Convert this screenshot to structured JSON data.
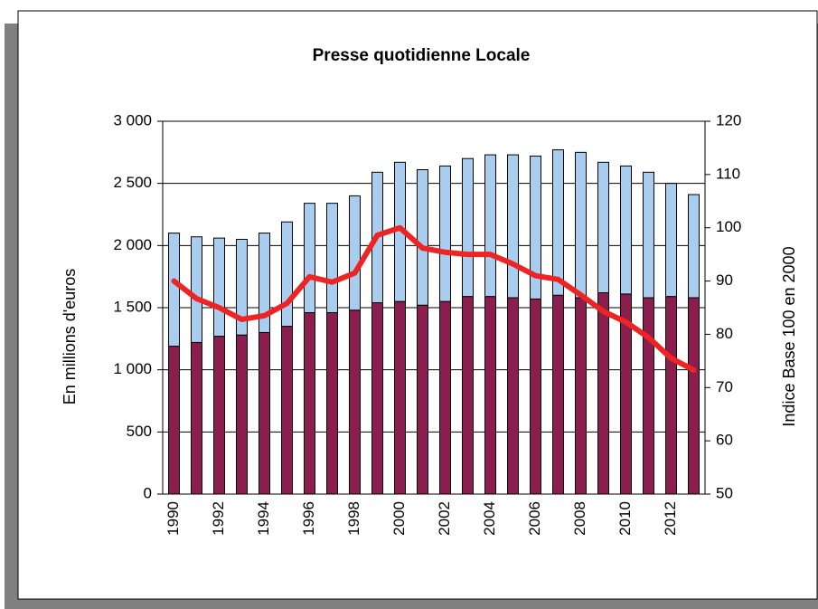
{
  "chart_data": {
    "type": "bar",
    "title": "Presse quotidienne Locale",
    "ylabel": "En millions d'euros",
    "y2label": "Indice Base 100 en 2000",
    "categories": [
      "1990",
      null,
      "1992",
      null,
      "1994",
      null,
      "1996",
      null,
      "1998",
      null,
      "2000",
      null,
      "2002",
      null,
      "2004",
      null,
      "2006",
      null,
      "2008",
      null,
      "2010",
      null,
      "2012",
      null
    ],
    "stacked": true,
    "series": [
      {
        "type": "bar",
        "color": "#8b1e4e",
        "values": [
          1190,
          1220,
          1270,
          1280,
          1300,
          1350,
          1460,
          1460,
          1480,
          1540,
          1550,
          1520,
          1550,
          1590,
          1590,
          1580,
          1570,
          1600,
          1580,
          1620,
          1610,
          1580,
          1590,
          1580
        ]
      },
      {
        "type": "bar",
        "color": "#a9cdee",
        "values": [
          910,
          850,
          790,
          770,
          800,
          840,
          880,
          880,
          920,
          1050,
          1120,
          1090,
          1090,
          1110,
          1140,
          1150,
          1150,
          1170,
          1170,
          1050,
          1030,
          1010,
          910,
          830
        ]
      },
      {
        "type": "line",
        "axis": "y2",
        "color": "#ee2424",
        "values": [
          90,
          86.7,
          85,
          82.8,
          83.5,
          85.8,
          90.8,
          89.8,
          91.5,
          98.6,
          100,
          96.2,
          95.4,
          95,
          95,
          93.2,
          91,
          90.3,
          87.4,
          84.3,
          82.3,
          79.4,
          75.5,
          73.3
        ]
      }
    ],
    "ylim": [
      0,
      3000
    ],
    "yticks": [
      0,
      500,
      {
        "value": 1000,
        "label": "1 000"
      },
      {
        "value": 1500,
        "label": "1 500"
      },
      {
        "value": 2000,
        "label": "2 000"
      },
      {
        "value": 2500,
        "label": "2 500"
      },
      {
        "value": 3000,
        "label": "3 000"
      }
    ],
    "y2lim": [
      50,
      120
    ],
    "y2ticks": [
      50,
      60,
      70,
      80,
      90,
      100,
      110,
      120
    ],
    "grid": true
  }
}
